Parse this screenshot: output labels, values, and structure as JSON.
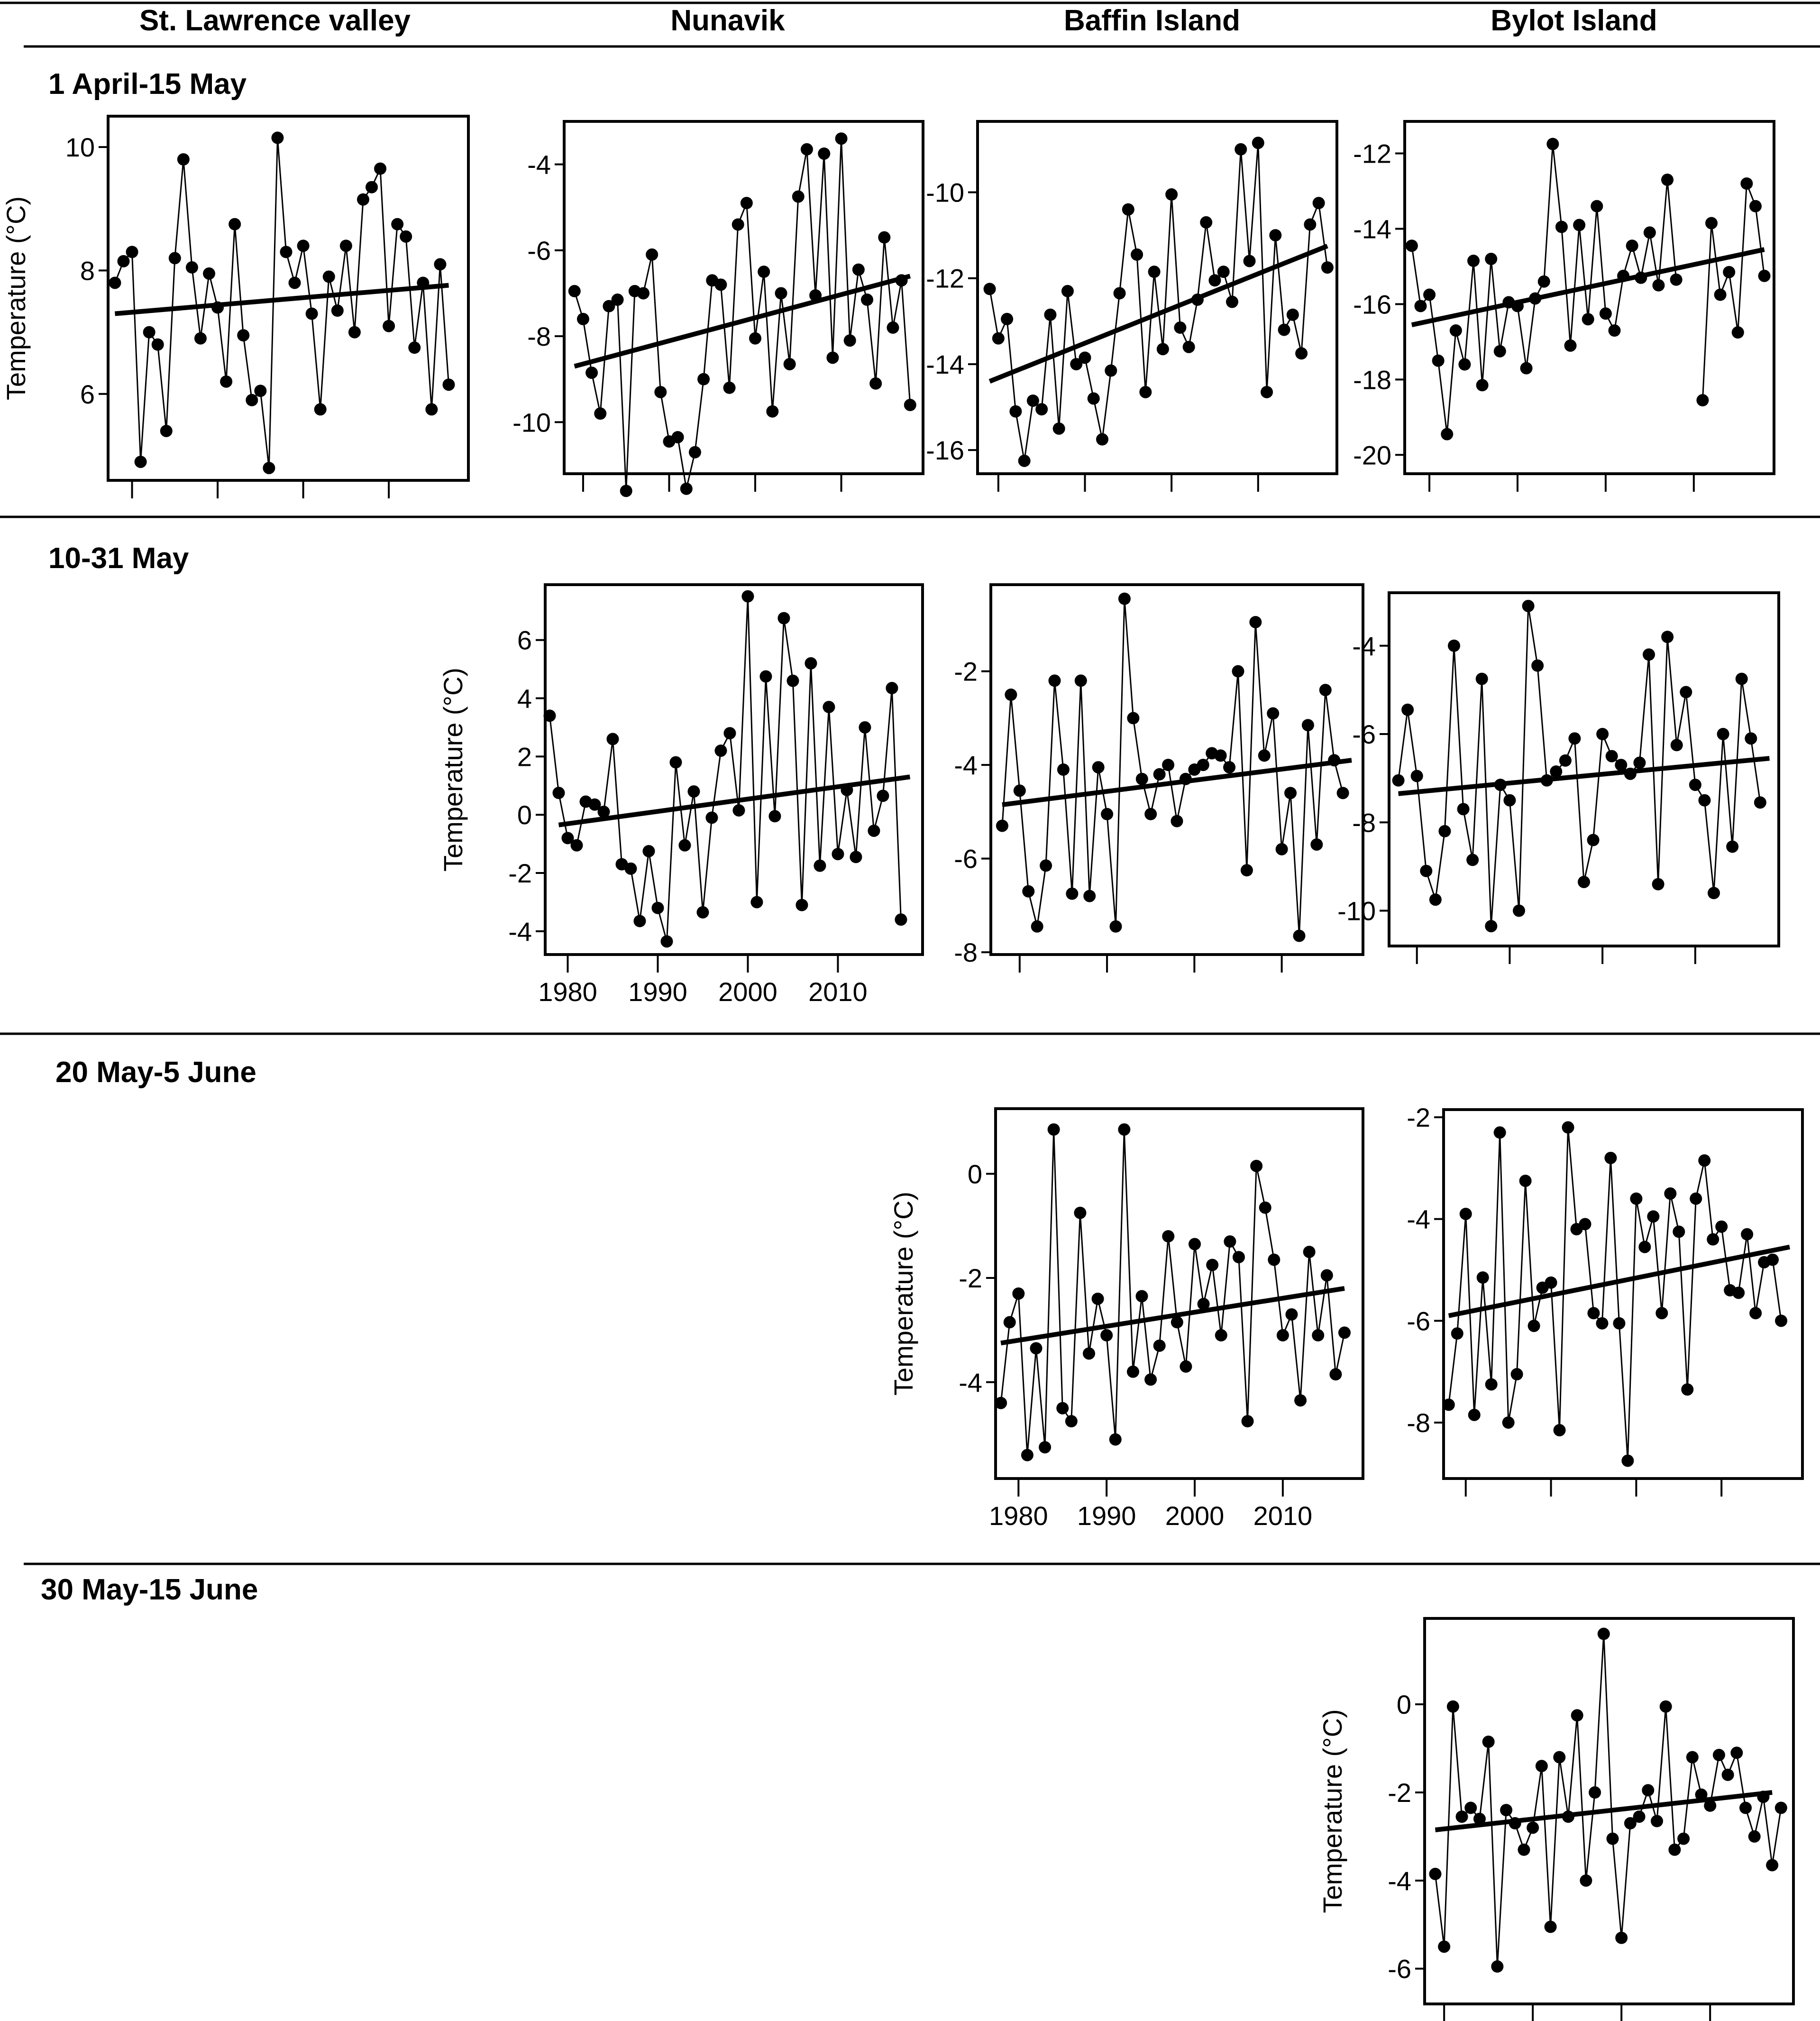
{
  "column_headers": [
    "St. Lawrence valley",
    "Nunavik",
    "Baffin Island",
    "Bylot Island"
  ],
  "row_headers": [
    "1 April-15 May",
    "10-31 May",
    "20 May-5 June",
    "30 May-15 June"
  ],
  "ylabel": "Temperature (°C)",
  "chart_data": [
    {
      "id": "stlawrence-apr-may",
      "type": "line",
      "region": "St. Lawrence valley",
      "period": "1 April-15 May",
      "ylabel": "Temperature (°C)",
      "ylim": [
        4.6,
        10.5
      ],
      "yticks": [
        6,
        8,
        10
      ],
      "xlim": [
        1977.2,
        2019.3
      ],
      "xticks": [
        1980,
        1990,
        2000,
        2010
      ],
      "xtick_labels_shown": false,
      "show_ylabel": true,
      "x": [
        1978,
        1979,
        1980,
        1981,
        1982,
        1983,
        1984,
        1985,
        1986,
        1987,
        1988,
        1989,
        1990,
        1991,
        1992,
        1993,
        1994,
        1995,
        1996,
        1997,
        1998,
        1999,
        2000,
        2001,
        2002,
        2003,
        2004,
        2005,
        2006,
        2007,
        2008,
        2009,
        2010,
        2011,
        2012,
        2013,
        2014,
        2015,
        2016,
        2017
      ],
      "values": [
        7.8,
        8.15,
        8.3,
        4.9,
        7.0,
        6.8,
        5.4,
        8.2,
        9.8,
        8.05,
        6.9,
        7.95,
        7.4,
        6.2,
        8.75,
        6.95,
        5.9,
        6.05,
        4.8,
        10.15,
        8.3,
        7.8,
        8.4,
        7.3,
        5.75,
        7.9,
        7.35,
        8.4,
        7.0,
        9.15,
        9.35,
        9.65,
        7.1,
        8.75,
        8.55,
        6.75,
        7.8,
        5.75,
        8.1,
        6.15
      ],
      "trend": {
        "x": [
          1978,
          2017
        ],
        "y": [
          7.3,
          7.76
        ]
      }
    },
    {
      "id": "nunavik-apr-may",
      "type": "line",
      "region": "Nunavik",
      "period": "1 April-15 May",
      "ylabel": "",
      "ylim": [
        -11.2,
        -3.0
      ],
      "yticks": [
        -10,
        -8,
        -6,
        -4
      ],
      "xlim": [
        1977.8,
        2019.5
      ],
      "xticks": [
        1980,
        1990,
        2000,
        2010
      ],
      "xtick_labels_shown": false,
      "show_ylabel": false,
      "x": [
        1979,
        1980,
        1981,
        1982,
        1983,
        1984,
        1985,
        1986,
        1987,
        1988,
        1989,
        1990,
        1991,
        1992,
        1993,
        1994,
        1995,
        1996,
        1997,
        1998,
        1999,
        2000,
        2001,
        2002,
        2003,
        2004,
        2005,
        2006,
        2007,
        2008,
        2009,
        2010,
        2011,
        2012,
        2013,
        2014,
        2015,
        2016,
        2017,
        2018
      ],
      "values": [
        -6.95,
        -7.6,
        -8.85,
        -9.8,
        -7.3,
        -7.15,
        -11.6,
        -6.95,
        -7.0,
        -6.1,
        -9.3,
        -10.45,
        -10.35,
        -11.55,
        -10.7,
        -9.0,
        -6.7,
        -6.8,
        -9.2,
        -5.4,
        -4.9,
        -8.05,
        -6.5,
        -9.75,
        -7.0,
        -8.65,
        -4.75,
        -3.65,
        -7.05,
        -3.75,
        -8.5,
        -3.4,
        -8.1,
        -6.45,
        -7.15,
        -9.1,
        -5.7,
        -7.8,
        -6.7,
        -9.6
      ],
      "trend": {
        "x": [
          1979,
          2018
        ],
        "y": [
          -8.7,
          -6.6
        ]
      }
    },
    {
      "id": "baffin-apr-may",
      "type": "line",
      "region": "Baffin Island",
      "period": "1 April-15 May",
      "ylabel": "",
      "ylim": [
        -16.55,
        -8.35
      ],
      "yticks": [
        -16,
        -14,
        -12,
        -10
      ],
      "xlim": [
        1977.6,
        2019.1
      ],
      "xticks": [
        1980,
        1990,
        2000,
        2010
      ],
      "xtick_labels_shown": false,
      "show_ylabel": false,
      "x": [
        1979,
        1980,
        1981,
        1982,
        1983,
        1984,
        1985,
        1986,
        1987,
        1988,
        1989,
        1990,
        1991,
        1992,
        1993,
        1994,
        1995,
        1996,
        1997,
        1998,
        1999,
        2000,
        2001,
        2002,
        2003,
        2004,
        2005,
        2006,
        2007,
        2008,
        2009,
        2010,
        2011,
        2012,
        2013,
        2014,
        2015,
        2016,
        2017,
        2018
      ],
      "values": [
        -12.25,
        -13.4,
        -12.95,
        -15.1,
        -16.25,
        -14.85,
        -15.05,
        -12.85,
        -15.5,
        -12.3,
        -14.0,
        -13.85,
        -14.8,
        -15.75,
        -14.15,
        -12.35,
        -10.4,
        -11.45,
        -14.65,
        -11.85,
        -13.65,
        -10.05,
        -13.15,
        -13.6,
        -12.5,
        -10.7,
        -12.05,
        -11.85,
        -12.55,
        -9.0,
        -11.6,
        -8.85,
        -14.65,
        -11.0,
        -13.2,
        -12.85,
        -13.75,
        -10.75,
        -10.25,
        -11.75
      ],
      "trend": {
        "x": [
          1979,
          2018
        ],
        "y": [
          -14.4,
          -11.25
        ]
      }
    },
    {
      "id": "bylot-apr-may",
      "type": "line",
      "region": "Bylot Island",
      "period": "1 April-15 May",
      "ylabel": "",
      "ylim": [
        -20.5,
        -11.15
      ],
      "yticks": [
        -20,
        -18,
        -16,
        -14,
        -12
      ],
      "xlim": [
        1977.2,
        2019.1
      ],
      "xticks": [
        1980,
        1990,
        2000,
        2010
      ],
      "xtick_labels_shown": false,
      "show_ylabel": false,
      "x": [
        1978,
        1979,
        1980,
        1981,
        1982,
        1983,
        1984,
        1985,
        1986,
        1987,
        1988,
        1989,
        1990,
        1991,
        1992,
        1993,
        1994,
        1995,
        1996,
        1997,
        1998,
        1999,
        2000,
        2001,
        2002,
        2003,
        2004,
        2005,
        2006,
        2007,
        2008,
        2009,
        2010,
        2011,
        2012,
        2013,
        2014,
        2015,
        2016,
        2017,
        2018
      ],
      "values": [
        -14.45,
        -16.05,
        -15.75,
        -17.5,
        -19.45,
        -16.7,
        -17.6,
        -14.85,
        -18.15,
        -14.8,
        -17.25,
        -15.95,
        -16.05,
        -17.7,
        -15.85,
        -15.4,
        -11.75,
        -13.95,
        -17.1,
        -13.9,
        -16.4,
        -13.4,
        -16.25,
        -16.7,
        -15.25,
        -14.45,
        -15.3,
        -14.1,
        -15.5,
        -12.7,
        -15.35,
        null,
        null,
        -18.55,
        -13.85,
        -15.75,
        -15.15,
        -16.75,
        -12.8,
        -13.4,
        -15.25
      ],
      "trend": {
        "x": [
          1978,
          2018
        ],
        "y": [
          -16.55,
          -14.55
        ]
      }
    },
    {
      "id": "nunavik-may",
      "type": "line",
      "region": "Nunavik",
      "period": "10-31 May",
      "ylabel": "Temperature (°C)",
      "ylim": [
        -4.8,
        7.9
      ],
      "yticks": [
        -4,
        -2,
        0,
        2,
        4,
        6
      ],
      "xlim": [
        1977.5,
        2019.4
      ],
      "xticks": [
        1980,
        1990,
        2000,
        2010
      ],
      "xtick_labels_shown": true,
      "show_ylabel": true,
      "x": [
        1978,
        1979,
        1980,
        1981,
        1982,
        1983,
        1984,
        1985,
        1986,
        1987,
        1988,
        1989,
        1990,
        1991,
        1992,
        1993,
        1994,
        1995,
        1996,
        1997,
        1998,
        1999,
        2000,
        2001,
        2002,
        2003,
        2004,
        2005,
        2006,
        2007,
        2008,
        2009,
        2010,
        2011,
        2012,
        2013,
        2014,
        2015,
        2016,
        2017,
        2018
      ],
      "values": [
        3.4,
        0.75,
        -0.8,
        -1.05,
        0.45,
        0.35,
        0.1,
        2.6,
        -1.7,
        -1.85,
        -3.65,
        -1.25,
        -3.2,
        -4.35,
        1.8,
        -1.05,
        0.8,
        -3.35,
        -0.1,
        2.2,
        2.8,
        0.15,
        7.5,
        -3.0,
        4.75,
        -0.05,
        6.75,
        4.6,
        -3.1,
        5.2,
        -1.75,
        3.7,
        -1.35,
        0.85,
        -1.45,
        3.0,
        -0.55,
        0.65,
        4.35,
        -3.6,
        null
      ],
      "trend": {
        "x": [
          1979,
          2018
        ],
        "y": [
          -0.35,
          1.3
        ]
      }
    },
    {
      "id": "baffin-may",
      "type": "line",
      "region": "Baffin Island",
      "period": "10-31 May",
      "ylabel": "",
      "ylim": [
        -8.05,
        -0.15
      ],
      "yticks": [
        -8,
        -6,
        -4,
        -2
      ],
      "xlim": [
        1976.7,
        2019.3
      ],
      "xticks": [
        1980,
        1990,
        2000,
        2010
      ],
      "xtick_labels_shown": false,
      "show_ylabel": false,
      "x": [
        1978,
        1979,
        1980,
        1981,
        1982,
        1983,
        1984,
        1985,
        1986,
        1987,
        1988,
        1989,
        1990,
        1991,
        1992,
        1993,
        1994,
        1995,
        1996,
        1997,
        1998,
        1999,
        2000,
        2001,
        2002,
        2003,
        2004,
        2005,
        2006,
        2007,
        2008,
        2009,
        2010,
        2011,
        2012,
        2013,
        2014,
        2015,
        2016,
        2017,
        2018
      ],
      "values": [
        -5.3,
        -2.5,
        -4.55,
        -6.7,
        -7.45,
        -6.15,
        -2.2,
        -4.1,
        -6.75,
        -2.2,
        -6.8,
        -4.05,
        -5.05,
        -7.45,
        -0.45,
        -3.0,
        -4.3,
        -5.05,
        -4.2,
        -4.0,
        -5.2,
        -4.3,
        -4.1,
        -4.0,
        -3.75,
        -3.8,
        -4.05,
        -2.0,
        -6.25,
        -0.95,
        -3.8,
        -2.9,
        -5.8,
        -4.6,
        -7.65,
        -3.15,
        -5.7,
        -2.4,
        -3.9,
        -4.6,
        null
      ],
      "trend": {
        "x": [
          1978,
          2018
        ],
        "y": [
          -4.85,
          -3.9
        ]
      }
    },
    {
      "id": "bylot-may",
      "type": "line",
      "region": "Bylot Island",
      "period": "10-31 May",
      "ylabel": "",
      "ylim": [
        -10.8,
        -2.8
      ],
      "yticks": [
        -10,
        -8,
        -6,
        -4
      ],
      "xlim": [
        1977.0,
        2019.0
      ],
      "xticks": [
        1980,
        1990,
        2000,
        2010
      ],
      "xtick_labels_shown": false,
      "show_ylabel": false,
      "x": [
        1978,
        1979,
        1980,
        1981,
        1982,
        1983,
        1984,
        1985,
        1986,
        1987,
        1988,
        1989,
        1990,
        1991,
        1992,
        1993,
        1994,
        1995,
        1996,
        1997,
        1998,
        1999,
        2000,
        2001,
        2002,
        2003,
        2004,
        2005,
        2006,
        2007,
        2008,
        2009,
        2010,
        2011,
        2012,
        2013,
        2014,
        2015,
        2016,
        2017,
        2018
      ],
      "values": [
        -7.05,
        -5.45,
        -6.95,
        -9.1,
        -9.75,
        -8.2,
        -4.0,
        -7.7,
        -8.85,
        -4.75,
        -10.35,
        -7.15,
        -7.5,
        -10.0,
        -3.1,
        -4.45,
        -7.05,
        -6.85,
        -6.6,
        -6.1,
        -9.35,
        -8.4,
        -6.0,
        -6.5,
        -6.7,
        -6.9,
        -6.65,
        -4.2,
        -9.4,
        -3.8,
        -6.25,
        -5.05,
        -7.15,
        -7.5,
        -9.6,
        -6.0,
        -8.55,
        -4.75,
        -6.1,
        -7.55,
        null
      ],
      "trend": {
        "x": [
          1978,
          2018
        ],
        "y": [
          -7.35,
          -6.55
        ]
      }
    },
    {
      "id": "baffin-june",
      "type": "line",
      "region": "Baffin Island",
      "period": "20 May-5 June",
      "ylabel": "Temperature (°C)",
      "ylim": [
        -5.85,
        1.25
      ],
      "yticks": [
        -4,
        -2,
        0
      ],
      "xlim": [
        1977.4,
        2019.1
      ],
      "xticks": [
        1980,
        1990,
        2000,
        2010
      ],
      "xtick_labels_shown": true,
      "show_ylabel": true,
      "x": [
        1978,
        1979,
        1980,
        1981,
        1982,
        1983,
        1984,
        1985,
        1986,
        1987,
        1988,
        1989,
        1990,
        1991,
        1992,
        1993,
        1994,
        1995,
        1996,
        1997,
        1998,
        1999,
        2000,
        2001,
        2002,
        2003,
        2004,
        2005,
        2006,
        2007,
        2008,
        2009,
        2010,
        2011,
        2012,
        2013,
        2014,
        2015,
        2016,
        2017,
        2018
      ],
      "values": [
        -4.4,
        -2.85,
        -2.3,
        -5.4,
        -3.35,
        -5.25,
        0.85,
        -4.5,
        -4.75,
        -0.75,
        -3.45,
        -2.4,
        -3.1,
        -5.1,
        0.85,
        -3.8,
        -2.35,
        -3.95,
        -3.3,
        -1.2,
        -2.85,
        -3.7,
        -1.35,
        -2.5,
        -1.75,
        -3.1,
        -1.3,
        -1.6,
        -4.75,
        0.15,
        -0.65,
        -1.65,
        -3.1,
        -2.7,
        -4.35,
        -1.5,
        -3.1,
        -1.95,
        -3.85,
        -3.05,
        null
      ],
      "trend": {
        "x": [
          1978,
          2017
        ],
        "y": [
          -3.25,
          -2.2
        ]
      }
    },
    {
      "id": "bylot-june",
      "type": "line",
      "region": "Bylot Island",
      "period": "20 May-5 June",
      "ylabel": "",
      "ylim": [
        -9.1,
        -1.85
      ],
      "yticks": [
        -8,
        -6,
        -4,
        -2
      ],
      "xlim": [
        1977.4,
        2019.5
      ],
      "xticks": [
        1980,
        1990,
        2000,
        2010
      ],
      "xtick_labels_shown": false,
      "show_ylabel": false,
      "x": [
        1978,
        1979,
        1980,
        1981,
        1982,
        1983,
        1984,
        1985,
        1986,
        1987,
        1988,
        1989,
        1990,
        1991,
        1992,
        1993,
        1994,
        1995,
        1996,
        1997,
        1998,
        1999,
        2000,
        2001,
        2002,
        2003,
        2004,
        2005,
        2006,
        2007,
        2008,
        2009,
        2010,
        2011,
        2012,
        2013,
        2014,
        2015,
        2016,
        2017,
        2018
      ],
      "values": [
        -7.65,
        -6.25,
        -3.9,
        -7.85,
        -5.15,
        -7.25,
        -2.3,
        -8.0,
        -7.05,
        -3.25,
        -6.1,
        -5.35,
        -5.25,
        -8.15,
        -2.2,
        -4.2,
        -4.1,
        -5.85,
        -6.05,
        -2.8,
        -6.05,
        -8.75,
        -3.6,
        -4.55,
        -3.95,
        -5.85,
        -3.5,
        -4.25,
        -7.35,
        -3.6,
        -2.85,
        -4.4,
        -4.15,
        -5.4,
        -5.45,
        -4.3,
        -5.85,
        -4.85,
        -4.8,
        -6.0,
        null
      ],
      "trend": {
        "x": [
          1978,
          2018
        ],
        "y": [
          -5.9,
          -4.55
        ]
      }
    },
    {
      "id": "bylot-late-june",
      "type": "line",
      "region": "Bylot Island",
      "period": "30 May-15 June",
      "ylabel": "Temperature (°C)",
      "ylim": [
        -6.8,
        1.95
      ],
      "yticks": [
        -6,
        -4,
        -2,
        0
      ],
      "xlim": [
        1977.8,
        2019.4
      ],
      "xticks": [
        1980,
        1990,
        2000,
        2010
      ],
      "xtick_labels_shown": true,
      "show_ylabel": true,
      "x": [
        1979,
        1980,
        1981,
        1982,
        1983,
        1984,
        1985,
        1986,
        1987,
        1988,
        1989,
        1990,
        1991,
        1992,
        1993,
        1994,
        1995,
        1996,
        1997,
        1998,
        1999,
        2000,
        2001,
        2002,
        2003,
        2004,
        2005,
        2006,
        2007,
        2008,
        2009,
        2010,
        2011,
        2012,
        2013,
        2014,
        2015,
        2016,
        2017,
        2018
      ],
      "values": [
        -3.85,
        -5.5,
        -0.05,
        -2.55,
        -2.35,
        -2.6,
        -0.85,
        -5.95,
        -2.4,
        -2.7,
        -3.3,
        -2.8,
        -1.4,
        -5.05,
        -1.2,
        -2.55,
        -0.25,
        -4.0,
        -2.0,
        1.6,
        -3.05,
        -5.3,
        -2.7,
        -2.55,
        -1.95,
        -2.65,
        -0.05,
        -3.3,
        -3.05,
        -1.2,
        -2.05,
        -2.3,
        -1.15,
        -1.6,
        -1.1,
        -2.35,
        -3.0,
        -2.1,
        -3.65,
        -2.35
      ],
      "trend": {
        "x": [
          1979,
          2017
        ],
        "y": [
          -2.85,
          -2.0
        ]
      }
    }
  ]
}
